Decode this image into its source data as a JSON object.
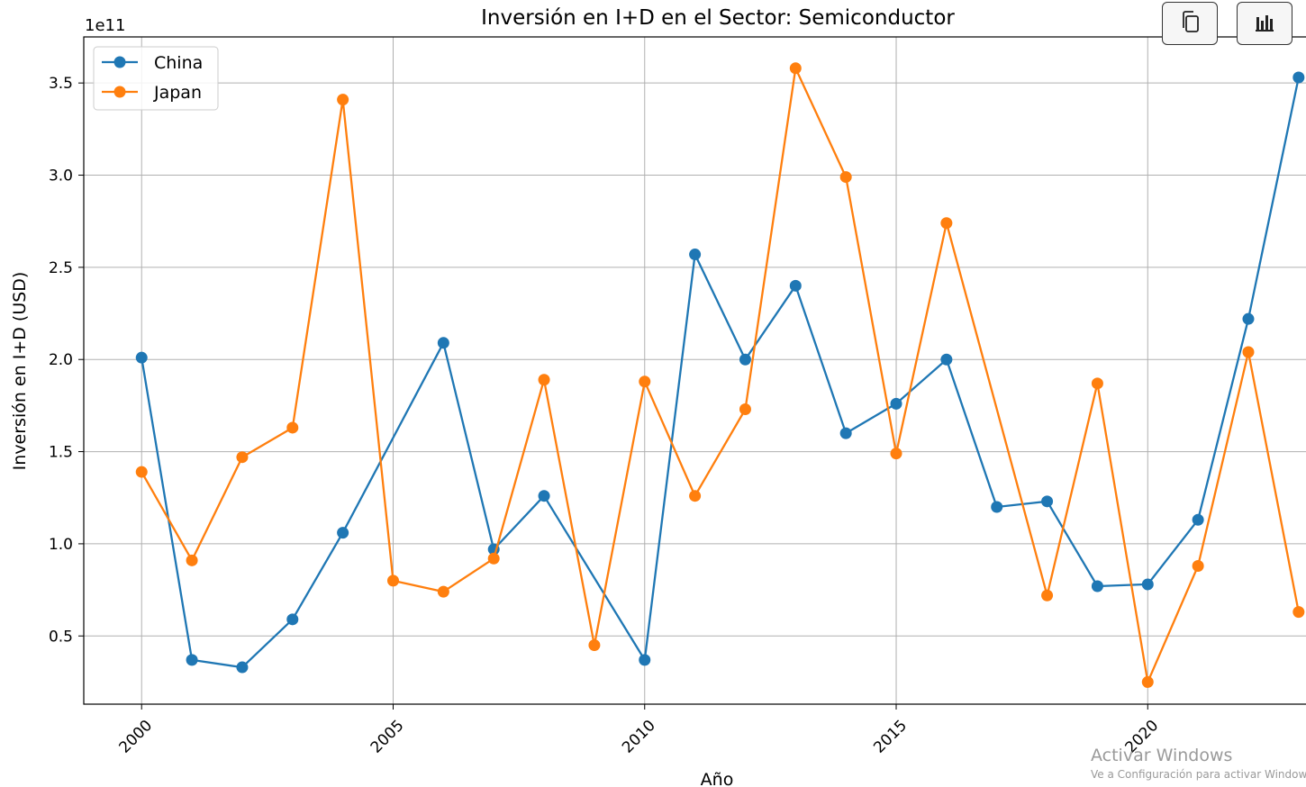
{
  "toolbar": {
    "copy_icon": "copy-icon",
    "chart_icon": "bar-chart-icon"
  },
  "watermark": {
    "title": "Activar Windows",
    "subtitle": "Ve a Configuración para activar Windows."
  },
  "chart_data": {
    "type": "line",
    "title": "Inversión en I+D en el Sector: Semiconductor",
    "xlabel": "Año",
    "ylabel": "Inversión en I+D (USD)",
    "y_offset_text": "1e11",
    "y_ticks": [
      0.5,
      1.0,
      1.5,
      2.0,
      2.5,
      3.0,
      3.5
    ],
    "y_tick_labels": [
      "0.5",
      "1.0",
      "1.5",
      "2.0",
      "2.5",
      "3.0",
      "3.5"
    ],
    "x_ticks": [
      2000,
      2005,
      2010,
      2015,
      2020
    ],
    "x_tick_labels": [
      "2000",
      "2005",
      "2010",
      "2015",
      "2020"
    ],
    "xlim": [
      1998.85,
      2023.2
    ],
    "ylim": [
      0.13,
      3.75
    ],
    "grid": true,
    "legend_position": "top-left",
    "x": [
      2000,
      2001,
      2002,
      2003,
      2004,
      2005,
      2006,
      2007,
      2008,
      2009,
      2010,
      2011,
      2012,
      2013,
      2014,
      2015,
      2016,
      2017,
      2018,
      2019,
      2020,
      2021,
      2022,
      2023
    ],
    "series": [
      {
        "name": "China",
        "color": "#1f77b4",
        "x": [
          2000,
          2001,
          2002,
          2003,
          2004,
          2006,
          2007,
          2008,
          2010,
          2011,
          2012,
          2013,
          2014,
          2015,
          2016,
          2017,
          2018,
          2019,
          2020,
          2021,
          2022,
          2023
        ],
        "values": [
          2.01,
          0.37,
          0.33,
          0.59,
          1.06,
          2.09,
          0.97,
          1.26,
          0.37,
          2.57,
          2.0,
          2.4,
          1.6,
          1.76,
          2.0,
          1.2,
          1.23,
          0.77,
          0.78,
          1.13,
          2.22,
          3.53
        ]
      },
      {
        "name": "Japan",
        "color": "#ff7f0e",
        "x": [
          2000,
          2001,
          2002,
          2003,
          2004,
          2005,
          2006,
          2007,
          2008,
          2009,
          2010,
          2011,
          2012,
          2013,
          2014,
          2015,
          2016,
          2018,
          2019,
          2020,
          2021,
          2022,
          2023
        ],
        "values": [
          1.39,
          0.91,
          1.47,
          1.63,
          3.41,
          0.8,
          0.74,
          0.92,
          1.89,
          0.45,
          1.88,
          1.26,
          1.73,
          3.58,
          2.99,
          1.49,
          2.74,
          0.72,
          1.87,
          0.25,
          0.88,
          2.04,
          0.63
        ]
      }
    ]
  }
}
